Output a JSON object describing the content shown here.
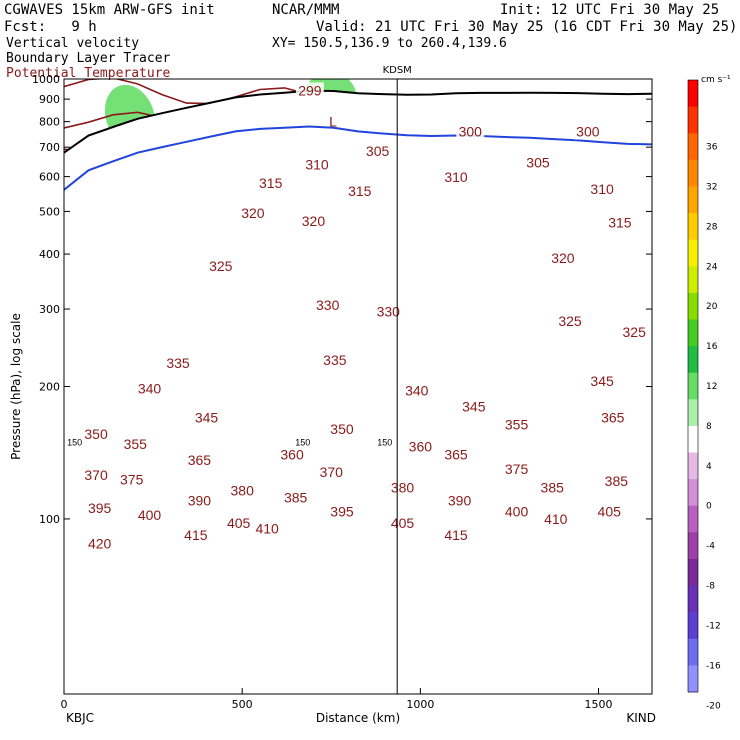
{
  "header": {
    "model": "CGWAVES 15km ARW-GFS init",
    "fcst": "Fcst:   9 h",
    "org": "NCAR/MMM",
    "init": "Init: 12 UTC Fri 30 May 25",
    "valid": "Valid: 21 UTC Fri 30 May 25 (16 CDT Fri 30 May 25)",
    "xy": "XY= 150.5,136.9 to 260.4,139.6",
    "field1": "Vertical velocity",
    "field2": "Boundary Layer Tracer",
    "field3": "Potential Temperature",
    "field3_color": "#8b1a1a"
  },
  "chart_data": {
    "type": "heatmap",
    "xlabel": "Distance (km)",
    "ylabel": "Pressure (hPa), log scale",
    "xlim": [
      0,
      1650
    ],
    "ylim": [
      1000,
      40
    ],
    "log_y": true,
    "x_ticks": [
      0,
      500,
      1000,
      1500
    ],
    "y_ticks": [
      100,
      200,
      300,
      400,
      500,
      600,
      700,
      800,
      900,
      1000
    ],
    "left_station": "KBJC",
    "right_station": "KIND",
    "mid_station": "KDSM",
    "mid_station_x": 935,
    "tropopause_label": "150",
    "low_label": "L",
    "colorbar": {
      "units": "cm s⁻¹",
      "ticks": [
        36,
        32,
        28,
        24,
        20,
        16,
        12,
        8,
        4,
        0,
        -4,
        -8,
        -12,
        -16,
        -20
      ],
      "colors": [
        "#ff0000",
        "#ff3300",
        "#ff6600",
        "#ff8800",
        "#ffa500",
        "#ffcc00",
        "#f5f000",
        "#ccee00",
        "#88dd00",
        "#44cc22",
        "#22bb44",
        "#66dd66",
        "#aaeeaa",
        "#ffffff",
        "#e8b8e8",
        "#d08fd8",
        "#b860c0",
        "#9c40a8",
        "#7a2a98",
        "#6a30b8",
        "#5a40d0",
        "#6c6cf0",
        "#9090ff"
      ]
    },
    "theta_levels": [
      {
        "value": 420,
        "p": 90
      },
      {
        "value": 415,
        "p": 96
      },
      {
        "value": 410,
        "p": 104
      },
      {
        "value": 405,
        "p": 110
      },
      {
        "value": 400,
        "p": 116
      },
      {
        "value": 395,
        "p": 122
      },
      {
        "value": 390,
        "p": 128
      },
      {
        "value": 385,
        "p": 134
      },
      {
        "value": 380,
        "p": 140
      },
      {
        "value": 375,
        "p": 146
      },
      {
        "value": 370,
        "p": 152
      },
      {
        "value": 365,
        "p": 160
      },
      {
        "value": 360,
        "p": 168
      },
      {
        "value": 355,
        "p": 176
      },
      {
        "value": 350,
        "p": 184
      },
      {
        "value": 345,
        "p": 198
      },
      {
        "value": 340,
        "p": 218
      },
      {
        "value": 335,
        "p": 246
      },
      {
        "value": 330,
        "p": 290
      },
      {
        "value": 325,
        "p": 350
      },
      {
        "value": 320,
        "p": 420
      },
      {
        "value": 315,
        "p": 500
      },
      {
        "value": 310,
        "p": 580
      },
      {
        "value": 305,
        "p": 660
      },
      {
        "value": 300,
        "p": 740
      },
      {
        "value": 299,
        "p": 880
      }
    ],
    "theta_labels": [
      {
        "text": "420",
        "x": 100,
        "p": 88
      },
      {
        "text": "415",
        "x": 370,
        "p": 92
      },
      {
        "text": "415",
        "x": 1100,
        "p": 92
      },
      {
        "text": "410",
        "x": 570,
        "p": 95
      },
      {
        "text": "410",
        "x": 1380,
        "p": 100
      },
      {
        "text": "405",
        "x": 490,
        "p": 98
      },
      {
        "text": "405",
        "x": 950,
        "p": 98
      },
      {
        "text": "405",
        "x": 1530,
        "p": 104
      },
      {
        "text": "400",
        "x": 240,
        "p": 102
      },
      {
        "text": "400",
        "x": 1270,
        "p": 104
      },
      {
        "text": "395",
        "x": 100,
        "p": 106
      },
      {
        "text": "395",
        "x": 780,
        "p": 104
      },
      {
        "text": "390",
        "x": 380,
        "p": 110
      },
      {
        "text": "390",
        "x": 1110,
        "p": 110
      },
      {
        "text": "385",
        "x": 650,
        "p": 112
      },
      {
        "text": "385",
        "x": 1370,
        "p": 118
      },
      {
        "text": "385",
        "x": 1550,
        "p": 122
      },
      {
        "text": "380",
        "x": 500,
        "p": 116
      },
      {
        "text": "380",
        "x": 950,
        "p": 118
      },
      {
        "text": "375",
        "x": 190,
        "p": 123
      },
      {
        "text": "375",
        "x": 1270,
        "p": 130
      },
      {
        "text": "370",
        "x": 90,
        "p": 126
      },
      {
        "text": "370",
        "x": 750,
        "p": 128
      },
      {
        "text": "365",
        "x": 380,
        "p": 136
      },
      {
        "text": "365",
        "x": 1100,
        "p": 140
      },
      {
        "text": "365",
        "x": 1540,
        "p": 170
      },
      {
        "text": "360",
        "x": 640,
        "p": 140
      },
      {
        "text": "360",
        "x": 1000,
        "p": 146
      },
      {
        "text": "355",
        "x": 200,
        "p": 148
      },
      {
        "text": "355",
        "x": 1270,
        "p": 164
      },
      {
        "text": "350",
        "x": 90,
        "p": 156
      },
      {
        "text": "350",
        "x": 780,
        "p": 160
      },
      {
        "text": "345",
        "x": 400,
        "p": 170
      },
      {
        "text": "345",
        "x": 1150,
        "p": 180
      },
      {
        "text": "345",
        "x": 1510,
        "p": 206
      },
      {
        "text": "340",
        "x": 240,
        "p": 198
      },
      {
        "text": "340",
        "x": 990,
        "p": 196
      },
      {
        "text": "335",
        "x": 320,
        "p": 226
      },
      {
        "text": "335",
        "x": 760,
        "p": 230
      },
      {
        "text": "330",
        "x": 740,
        "p": 306
      },
      {
        "text": "330",
        "x": 910,
        "p": 296
      },
      {
        "text": "325",
        "x": 440,
        "p": 376
      },
      {
        "text": "325",
        "x": 1420,
        "p": 282
      },
      {
        "text": "325",
        "x": 1600,
        "p": 266
      },
      {
        "text": "320",
        "x": 530,
        "p": 496
      },
      {
        "text": "320",
        "x": 700,
        "p": 476
      },
      {
        "text": "320",
        "x": 1400,
        "p": 392
      },
      {
        "text": "315",
        "x": 580,
        "p": 580
      },
      {
        "text": "315",
        "x": 830,
        "p": 556
      },
      {
        "text": "315",
        "x": 1560,
        "p": 472
      },
      {
        "text": "310",
        "x": 710,
        "p": 640
      },
      {
        "text": "310",
        "x": 1100,
        "p": 598
      },
      {
        "text": "310",
        "x": 1510,
        "p": 562
      },
      {
        "text": "305",
        "x": 880,
        "p": 686
      },
      {
        "text": "305",
        "x": 1330,
        "p": 646
      },
      {
        "text": "300",
        "x": 1140,
        "p": 760
      },
      {
        "text": "300",
        "x": 1470,
        "p": 760
      },
      {
        "text": "299",
        "x": 690,
        "p": 942
      }
    ],
    "surface_p": [
      560,
      620,
      650,
      680,
      700,
      720,
      740,
      760,
      770,
      775,
      780,
      775,
      760,
      752,
      745,
      742,
      744,
      742,
      738,
      735,
      730,
      725,
      718,
      712,
      710
    ],
    "grid": false
  }
}
